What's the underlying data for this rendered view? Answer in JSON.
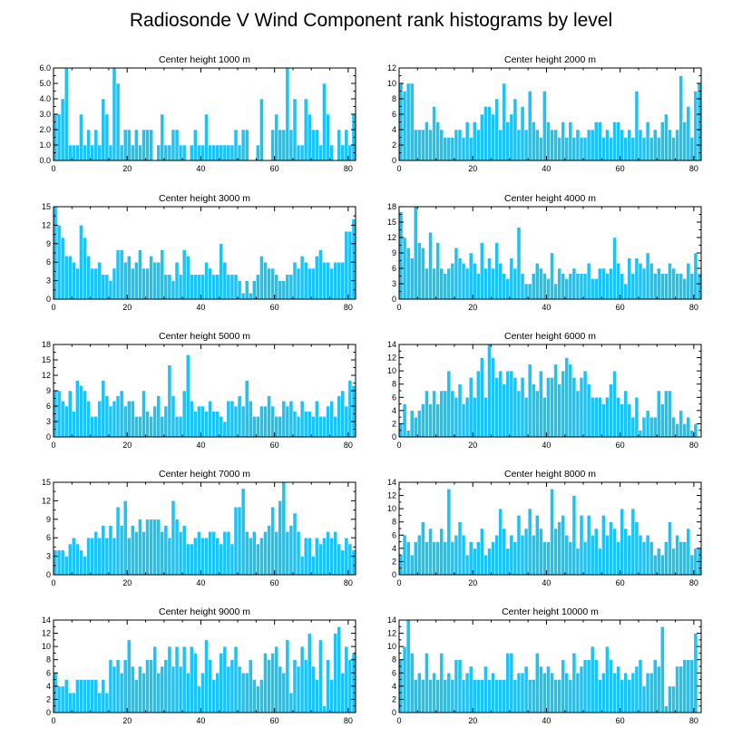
{
  "figure": {
    "title": "Radiosonde V Wind Component rank histograms by level"
  },
  "colors": {
    "bar_fill": "#1ec3f5",
    "bar_edge": "#ffffff",
    "axis": "#000000"
  },
  "chart_data": [
    {
      "type": "bar",
      "title": "Center height 1000 m",
      "xlim": [
        0,
        82
      ],
      "ylim": [
        0,
        6
      ],
      "xticks": [
        "0",
        "20",
        "40",
        "60",
        "80"
      ],
      "xtick_values": [
        0,
        20,
        40,
        60,
        80
      ],
      "yticks": [
        "0.0",
        "1.0",
        "2.0",
        "3.0",
        "4.0",
        "5.0",
        "6.0"
      ],
      "ytick_values": [
        0,
        1,
        2,
        3,
        4,
        5,
        6
      ],
      "values": [
        3,
        3,
        4,
        6,
        1,
        1,
        1,
        3,
        1,
        2,
        1,
        2,
        1,
        4,
        3,
        1,
        6,
        5,
        1,
        2,
        2,
        1,
        2,
        1,
        2,
        2,
        2,
        0,
        1,
        3,
        1,
        1,
        2,
        2,
        1,
        1,
        0,
        1,
        2,
        1,
        1,
        3,
        1,
        1,
        1,
        1,
        1,
        1,
        1,
        2,
        1,
        2,
        2,
        0,
        0,
        1,
        4,
        0,
        0,
        2,
        3,
        2,
        2,
        6,
        2,
        4,
        1,
        1,
        4,
        3,
        2,
        2,
        1,
        5,
        3,
        1,
        0,
        2,
        1,
        2,
        1,
        3
      ]
    },
    {
      "type": "bar",
      "title": "Center height 2000 m",
      "xlim": [
        0,
        82
      ],
      "ylim": [
        0,
        12
      ],
      "xticks": [
        "0",
        "20",
        "40",
        "60",
        "80"
      ],
      "xtick_values": [
        0,
        20,
        40,
        60,
        80
      ],
      "yticks": [
        "0",
        "2",
        "4",
        "6",
        "8",
        "10",
        "12"
      ],
      "ytick_values": [
        0,
        2,
        4,
        6,
        8,
        10,
        12
      ],
      "values": [
        10,
        9,
        10,
        10,
        4,
        4,
        4,
        5,
        4,
        7,
        5,
        4,
        3,
        3,
        3,
        4,
        4,
        3,
        5,
        3,
        5,
        4,
        6,
        7,
        7,
        6,
        8,
        4,
        10,
        5,
        6,
        8,
        4,
        7,
        4,
        9,
        5,
        4,
        3,
        9,
        5,
        4,
        4,
        3,
        5,
        3,
        5,
        3,
        4,
        3,
        3,
        4,
        4,
        5,
        5,
        3,
        4,
        3,
        5,
        5,
        4,
        3,
        4,
        3,
        9,
        4,
        3,
        5,
        3,
        4,
        3,
        5,
        6,
        4,
        3,
        4,
        11,
        5,
        7,
        3,
        9,
        10
      ]
    },
    {
      "type": "bar",
      "title": "Center height 3000 m",
      "xlim": [
        0,
        82
      ],
      "ylim": [
        0,
        15
      ],
      "xticks": [
        "0",
        "20",
        "40",
        "60",
        "80"
      ],
      "xtick_values": [
        0,
        20,
        40,
        60,
        80
      ],
      "yticks": [
        "0",
        "3",
        "6",
        "9",
        "12",
        "15"
      ],
      "ytick_values": [
        0,
        3,
        6,
        9,
        12,
        15
      ],
      "values": [
        15,
        12,
        10,
        7,
        7,
        6,
        5,
        12,
        10,
        7,
        5,
        5,
        6,
        4,
        4,
        3,
        5,
        8,
        8,
        6,
        7,
        5,
        6,
        8,
        5,
        5,
        7,
        6,
        6,
        8,
        4,
        4,
        3,
        6,
        4,
        8,
        7,
        4,
        4,
        4,
        4,
        6,
        5,
        4,
        4,
        9,
        6,
        4,
        4,
        4,
        3,
        1,
        3,
        1,
        3,
        4,
        7,
        6,
        5,
        5,
        4,
        3,
        3,
        4,
        4,
        6,
        5,
        7,
        6,
        5,
        5,
        7,
        8,
        6,
        6,
        5,
        6,
        6,
        6,
        11,
        11,
        13
      ]
    },
    {
      "type": "bar",
      "title": "Center height 4000 m",
      "xlim": [
        0,
        82
      ],
      "ylim": [
        0,
        18
      ],
      "xticks": [
        "0",
        "20",
        "40",
        "60",
        "80"
      ],
      "xtick_values": [
        0,
        20,
        40,
        60,
        80
      ],
      "yticks": [
        "0",
        "3",
        "6",
        "9",
        "12",
        "15",
        "18"
      ],
      "ytick_values": [
        0,
        3,
        6,
        9,
        12,
        15,
        18
      ],
      "values": [
        17,
        12,
        10,
        8,
        18,
        11,
        10,
        6,
        13,
        6,
        11,
        6,
        5,
        6,
        7,
        10,
        8,
        7,
        6,
        9,
        7,
        5,
        11,
        6,
        8,
        6,
        11,
        7,
        5,
        4,
        8,
        6,
        14,
        5,
        3,
        3,
        5,
        7,
        6,
        5,
        4,
        9,
        3,
        6,
        5,
        4,
        5,
        6,
        5,
        5,
        5,
        7,
        4,
        4,
        6,
        6,
        5,
        6,
        12,
        7,
        5,
        3,
        8,
        5,
        8,
        7,
        6,
        9,
        7,
        5,
        6,
        5,
        5,
        7,
        6,
        5,
        5,
        4,
        7,
        5,
        9,
        5
      ]
    },
    {
      "type": "bar",
      "title": "Center height 5000 m",
      "xlim": [
        0,
        82
      ],
      "ylim": [
        0,
        18
      ],
      "xticks": [
        "0",
        "20",
        "40",
        "60",
        "80"
      ],
      "xtick_values": [
        0,
        20,
        40,
        60,
        80
      ],
      "yticks": [
        "0",
        "3",
        "6",
        "9",
        "12",
        "15",
        "18"
      ],
      "ytick_values": [
        0,
        3,
        6,
        9,
        12,
        15,
        18
      ],
      "values": [
        9,
        9,
        7,
        6,
        9,
        5,
        11,
        10,
        9,
        7,
        4,
        4,
        7,
        11,
        8,
        6,
        7,
        8,
        9,
        6,
        7,
        7,
        4,
        4,
        9,
        5,
        4,
        6,
        8,
        4,
        6,
        14,
        8,
        4,
        4,
        9,
        16,
        7,
        5,
        6,
        6,
        5,
        7,
        5,
        5,
        4,
        3,
        7,
        7,
        6,
        8,
        6,
        11,
        7,
        4,
        4,
        6,
        6,
        8,
        6,
        4,
        4,
        7,
        6,
        7,
        5,
        4,
        7,
        5,
        5,
        4,
        7,
        4,
        4,
        6,
        7,
        4,
        8,
        9,
        6,
        11,
        10
      ]
    },
    {
      "type": "bar",
      "title": "Center height 6000 m",
      "xlim": [
        0,
        82
      ],
      "ylim": [
        0,
        14
      ],
      "xticks": [
        "0",
        "20",
        "40",
        "60",
        "80"
      ],
      "xtick_values": [
        0,
        20,
        40,
        60,
        80
      ],
      "yticks": [
        "0",
        "2",
        "4",
        "6",
        "8",
        "10",
        "12",
        "14"
      ],
      "ytick_values": [
        0,
        2,
        4,
        6,
        8,
        10,
        12,
        14
      ],
      "values": [
        2,
        5,
        1,
        4,
        3,
        4,
        5,
        7,
        5,
        7,
        5,
        7,
        7,
        10,
        7,
        6,
        8,
        5,
        6,
        9,
        6,
        10,
        12,
        6,
        14,
        12,
        9,
        10,
        8,
        10,
        10,
        9,
        7,
        9,
        6,
        11,
        8,
        7,
        10,
        6,
        9,
        9,
        11,
        8,
        10,
        12,
        11,
        9,
        7,
        9,
        10,
        8,
        6,
        6,
        6,
        5,
        6,
        8,
        10,
        6,
        5,
        7,
        5,
        3,
        6,
        1,
        3,
        4,
        3,
        3,
        7,
        5,
        7,
        7,
        3,
        2,
        4,
        2,
        3,
        1,
        2
      ]
    },
    {
      "type": "bar",
      "title": "Center height 7000 m",
      "xlim": [
        0,
        82
      ],
      "ylim": [
        0,
        15
      ],
      "xticks": [
        "0",
        "20",
        "40",
        "60",
        "80"
      ],
      "xtick_values": [
        0,
        20,
        40,
        60,
        80
      ],
      "yticks": [
        "0",
        "3",
        "6",
        "9",
        "12",
        "15"
      ],
      "ytick_values": [
        0,
        3,
        6,
        9,
        12,
        15
      ],
      "values": [
        4,
        4,
        4,
        3,
        5,
        6,
        5,
        4,
        3,
        6,
        6,
        7,
        6,
        8,
        6,
        8,
        6,
        11,
        8,
        12,
        6,
        8,
        7,
        9,
        7,
        9,
        9,
        9,
        9,
        7,
        8,
        6,
        12,
        9,
        7,
        8,
        5,
        5,
        6,
        7,
        6,
        6,
        7,
        7,
        6,
        5,
        7,
        7,
        5,
        11,
        11,
        14,
        7,
        6,
        7,
        5,
        6,
        7,
        8,
        11,
        7,
        12,
        15,
        7,
        8,
        10,
        7,
        3,
        6,
        6,
        3,
        6,
        5,
        6,
        7,
        6,
        7,
        5,
        4,
        6,
        5,
        4
      ]
    },
    {
      "type": "bar",
      "title": "Center height 8000 m",
      "xlim": [
        0,
        82
      ],
      "ylim": [
        0,
        14
      ],
      "xticks": [
        "0",
        "20",
        "40",
        "60",
        "80"
      ],
      "xtick_values": [
        0,
        20,
        40,
        60,
        80
      ],
      "yticks": [
        "0",
        "2",
        "4",
        "6",
        "8",
        "10",
        "12",
        "14"
      ],
      "ytick_values": [
        0,
        2,
        4,
        6,
        8,
        10,
        12,
        14
      ],
      "values": [
        3,
        6,
        5,
        3,
        5,
        6,
        8,
        5,
        7,
        5,
        5,
        7,
        5,
        13,
        5,
        6,
        8,
        6,
        3,
        5,
        4,
        5,
        7,
        3,
        4,
        5,
        6,
        10,
        7,
        4,
        6,
        5,
        9,
        6,
        7,
        10,
        6,
        9,
        7,
        5,
        5,
        13,
        7,
        8,
        9,
        6,
        5,
        12,
        4,
        9,
        5,
        9,
        6,
        7,
        4,
        9,
        6,
        8,
        7,
        5,
        10,
        7,
        6,
        10,
        8,
        6,
        5,
        6,
        5,
        3,
        4,
        3,
        5,
        8,
        4,
        6,
        5,
        5,
        7,
        3,
        4,
        4
      ]
    },
    {
      "type": "bar",
      "title": "Center height 9000 m",
      "xlim": [
        0,
        82
      ],
      "ylim": [
        0,
        14
      ],
      "xticks": [
        "0",
        "20",
        "40",
        "60",
        "80"
      ],
      "xtick_values": [
        0,
        20,
        40,
        60,
        80
      ],
      "yticks": [
        "0",
        "2",
        "4",
        "6",
        "8",
        "10",
        "12",
        "14"
      ],
      "ytick_values": [
        0,
        2,
        4,
        6,
        8,
        10,
        12,
        14
      ],
      "values": [
        6,
        4,
        4,
        5,
        3,
        3,
        5,
        5,
        5,
        5,
        5,
        5,
        3,
        5,
        3,
        8,
        7,
        8,
        6,
        8,
        11,
        7,
        5,
        7,
        6,
        8,
        8,
        10,
        6,
        7,
        8,
        10,
        7,
        10,
        7,
        10,
        6,
        10,
        9,
        4,
        6,
        11,
        8,
        5,
        6,
        9,
        10,
        7,
        8,
        10,
        7,
        6,
        6,
        8,
        5,
        4,
        5,
        9,
        8,
        9,
        10,
        7,
        6,
        11,
        3,
        8,
        7,
        10,
        8,
        12,
        7,
        5,
        11,
        1,
        8,
        5,
        12,
        13,
        6,
        10,
        8,
        9
      ]
    },
    {
      "type": "bar",
      "title": "Center height 10000 m",
      "xlim": [
        0,
        82
      ],
      "ylim": [
        0,
        14
      ],
      "xticks": [
        "0",
        "20",
        "40",
        "60",
        "80"
      ],
      "xtick_values": [
        0,
        20,
        40,
        60,
        80
      ],
      "yticks": [
        "0",
        "2",
        "4",
        "6",
        "8",
        "10",
        "12",
        "14"
      ],
      "ytick_values": [
        0,
        2,
        4,
        6,
        8,
        10,
        12,
        14
      ],
      "values": [
        8,
        10,
        14,
        9,
        5,
        6,
        5,
        9,
        5,
        6,
        5,
        9,
        5,
        6,
        5,
        8,
        8,
        5,
        6,
        7,
        5,
        5,
        5,
        7,
        5,
        6,
        5,
        5,
        5,
        9,
        9,
        5,
        6,
        6,
        7,
        5,
        5,
        9,
        7,
        6,
        7,
        6,
        5,
        5,
        8,
        6,
        5,
        9,
        6,
        7,
        8,
        8,
        10,
        8,
        5,
        6,
        10,
        8,
        6,
        7,
        5,
        6,
        5,
        6,
        7,
        8,
        4,
        6,
        6,
        8,
        7,
        13,
        1,
        4,
        4,
        7,
        7,
        8,
        8,
        8,
        12
      ]
    }
  ]
}
